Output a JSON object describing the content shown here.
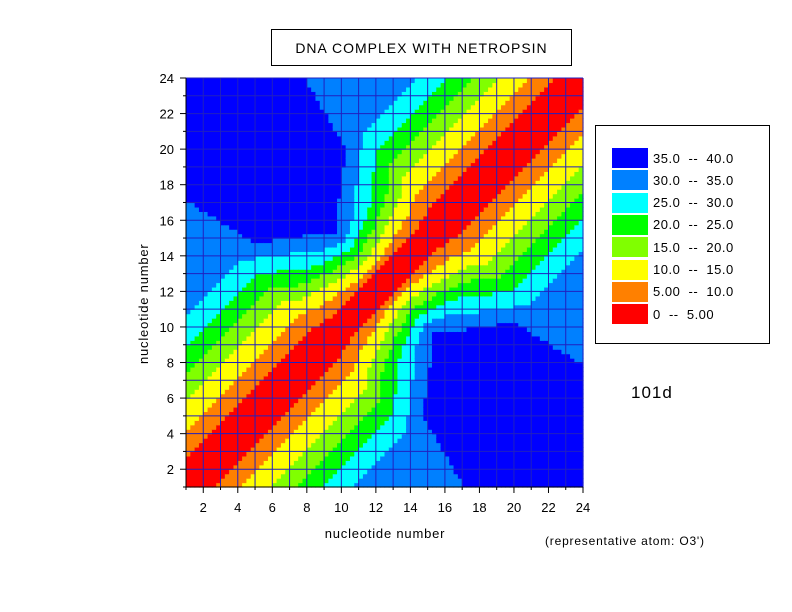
{
  "chart_data": {
    "type": "heatmap",
    "title": "DNA COMPLEX WITH NETROPSIN",
    "xlabel": "nucleotide number",
    "ylabel": "nucleotide number",
    "xlim": [
      1,
      24
    ],
    "ylim": [
      1,
      24
    ],
    "x_ticks": [
      2,
      4,
      6,
      8,
      10,
      12,
      14,
      16,
      18,
      20,
      22,
      24
    ],
    "y_ticks": [
      2,
      4,
      6,
      8,
      10,
      12,
      14,
      16,
      18,
      20,
      22,
      24
    ],
    "grid": true,
    "legend_position": "right",
    "legend": [
      {
        "label": "35.0  --  40.0",
        "color": "#0000ff"
      },
      {
        "label": "30.0  --  35.0",
        "color": "#0080ff"
      },
      {
        "label": "25.0  --  30.0",
        "color": "#00ffff"
      },
      {
        "label": "20.0  --  25.0",
        "color": "#00ff00"
      },
      {
        "label": "15.0  --  20.0",
        "color": "#80ff00"
      },
      {
        "label": "10.0  --  15.0",
        "color": "#ffff00"
      },
      {
        "label": "5.00  --  10.0",
        "color": "#ff8000"
      },
      {
        "label": "0  --  5.00",
        "color": "#ff0000"
      }
    ],
    "levels": [
      0,
      5,
      10,
      15,
      20,
      25,
      30,
      35,
      40
    ],
    "colors": [
      "#ff0000",
      "#ff8000",
      "#ffff00",
      "#80ff00",
      "#00ff00",
      "#00ffff",
      "#0080ff",
      "#0000ff"
    ],
    "grid_color": "#2020c0",
    "annotations": [
      "101d",
      "(representative atom: O3')"
    ]
  }
}
